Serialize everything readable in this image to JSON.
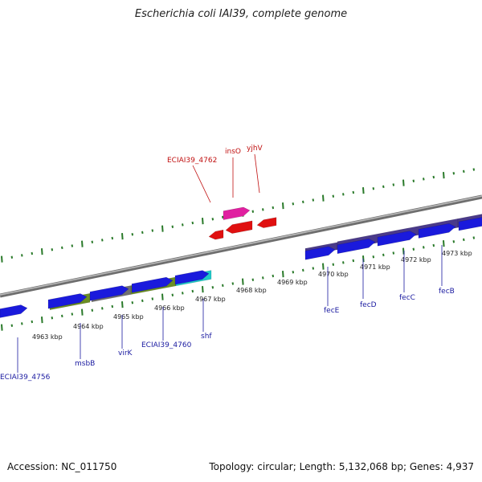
{
  "title": "Escherichia coli IAI39, complete genome",
  "footer": {
    "accession_label": "Accession:",
    "accession": "NC_011750",
    "topology_label": "Topology:",
    "topology": "circular",
    "length_label": "Length:",
    "length": "5,132,068 bp",
    "genes_label": "Genes:",
    "genes": "4,937"
  },
  "colors": {
    "backbone": "#8a8a8a",
    "gene_fwd": "#1a1adc",
    "gene_rev": "#e01010",
    "misc_rev": "#e020a0",
    "tick": "#2a7a2a",
    "label_fwd": "#1a1aa0",
    "label_rev": "#c01010",
    "cog_olive": "#6b8e23",
    "cog_gray": "#707070",
    "cog_cyan": "#20c8c8",
    "cog_purple": "#4a3a8a"
  },
  "scale_labels": [
    "4963 kbp",
    "4964 kbp",
    "4965 kbp",
    "4966 kbp",
    "4967 kbp",
    "4968 kbp",
    "4969 kbp",
    "4970 kbp",
    "4971 kbp",
    "4972 kbp",
    "4973 kbp"
  ],
  "genes": [
    {
      "name": "ECIAI39_4756",
      "strand": "+"
    },
    {
      "name": "msbB",
      "strand": "+"
    },
    {
      "name": "virK",
      "strand": "+"
    },
    {
      "name": "ECIAI39_4760",
      "strand": "+"
    },
    {
      "name": "shf",
      "strand": "+"
    },
    {
      "name": "ECIAI39_4762",
      "strand": "-"
    },
    {
      "name": "insO",
      "strand": "-"
    },
    {
      "name": "yjhV",
      "strand": "-"
    },
    {
      "name": "fecE",
      "strand": "+"
    },
    {
      "name": "fecD",
      "strand": "+"
    },
    {
      "name": "fecC",
      "strand": "+"
    },
    {
      "name": "fecB",
      "strand": "+"
    }
  ]
}
